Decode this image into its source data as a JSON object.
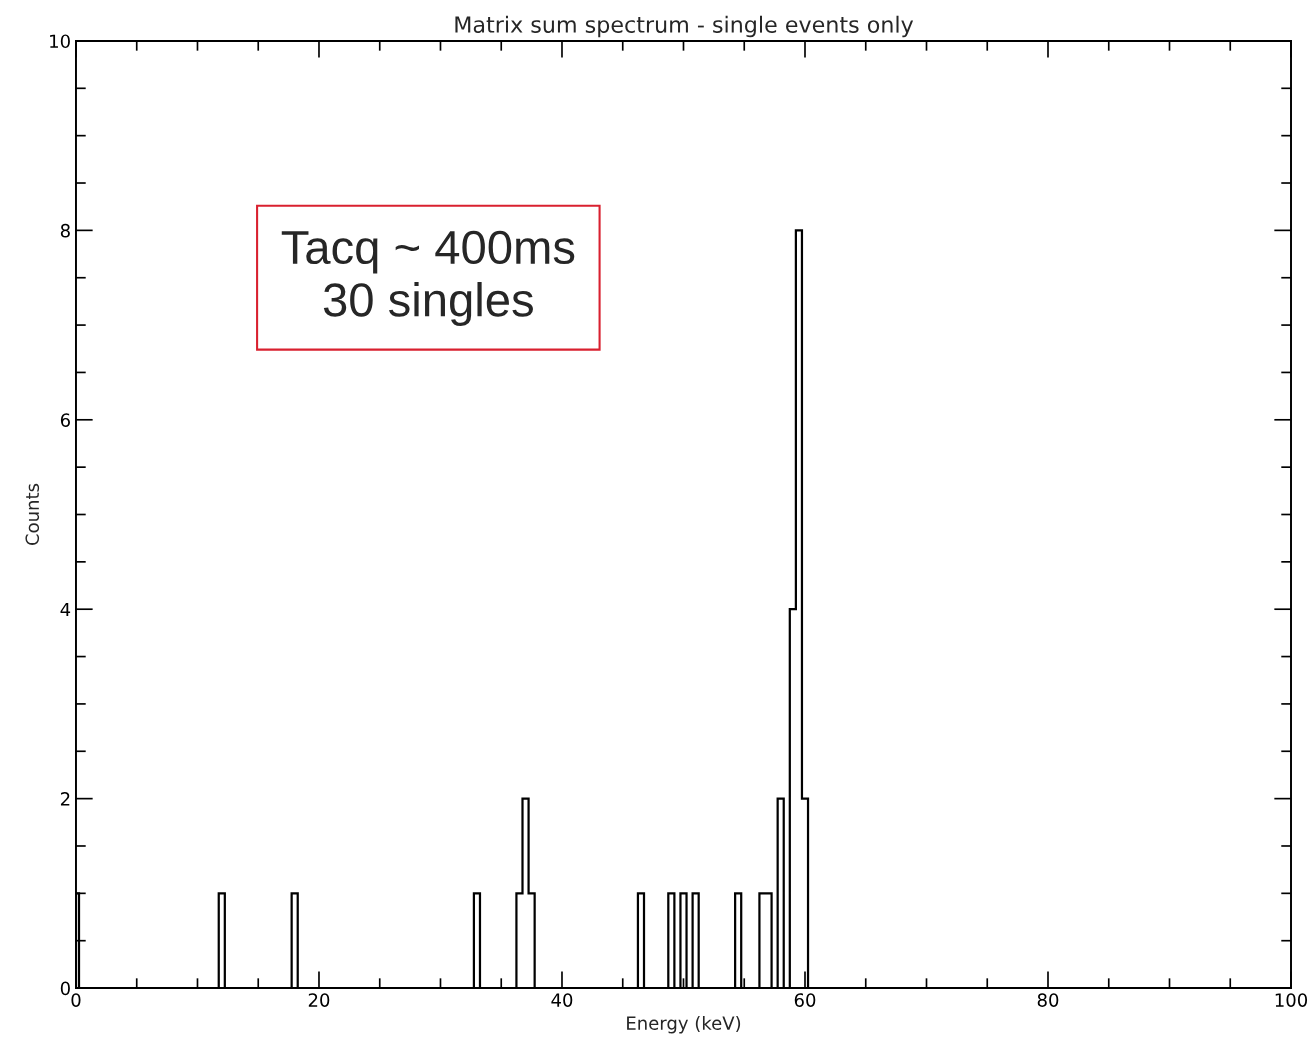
{
  "chart_data": {
    "type": "histogram",
    "title": "Matrix sum spectrum - single events only",
    "xlabel": "Energy (keV)",
    "ylabel": "Counts",
    "bins": [
      0,
      0.25,
      11.75,
      12.25,
      17.75,
      18.25,
      32.75,
      33.25,
      36.25,
      36.75,
      37.25,
      37.75,
      46.25,
      46.75,
      48.75,
      49.25,
      49.75,
      50.25,
      50.75,
      51.25,
      54.25,
      54.75,
      56.25,
      56.75,
      57.25,
      57.75,
      58.25,
      58.75,
      59.25,
      59.75,
      60.25
    ],
    "values": [
      1,
      0,
      1,
      0,
      1,
      0,
      1,
      0,
      1,
      2,
      1,
      0,
      1,
      0,
      1,
      0,
      1,
      0,
      1,
      0,
      1,
      0,
      1,
      1,
      0,
      2,
      0,
      4,
      8,
      2
    ],
    "color": "#000000",
    "xlim": [
      0,
      100
    ],
    "xticks": [
      0,
      20,
      40,
      60,
      80,
      100
    ],
    "ylim": [
      0,
      10
    ],
    "yticks": [
      0,
      2,
      4,
      6,
      8,
      10
    ],
    "annotations": [
      "Tacq ~ 400ms\n30 singles"
    ],
    "grid": false,
    "legend": false
  }
}
